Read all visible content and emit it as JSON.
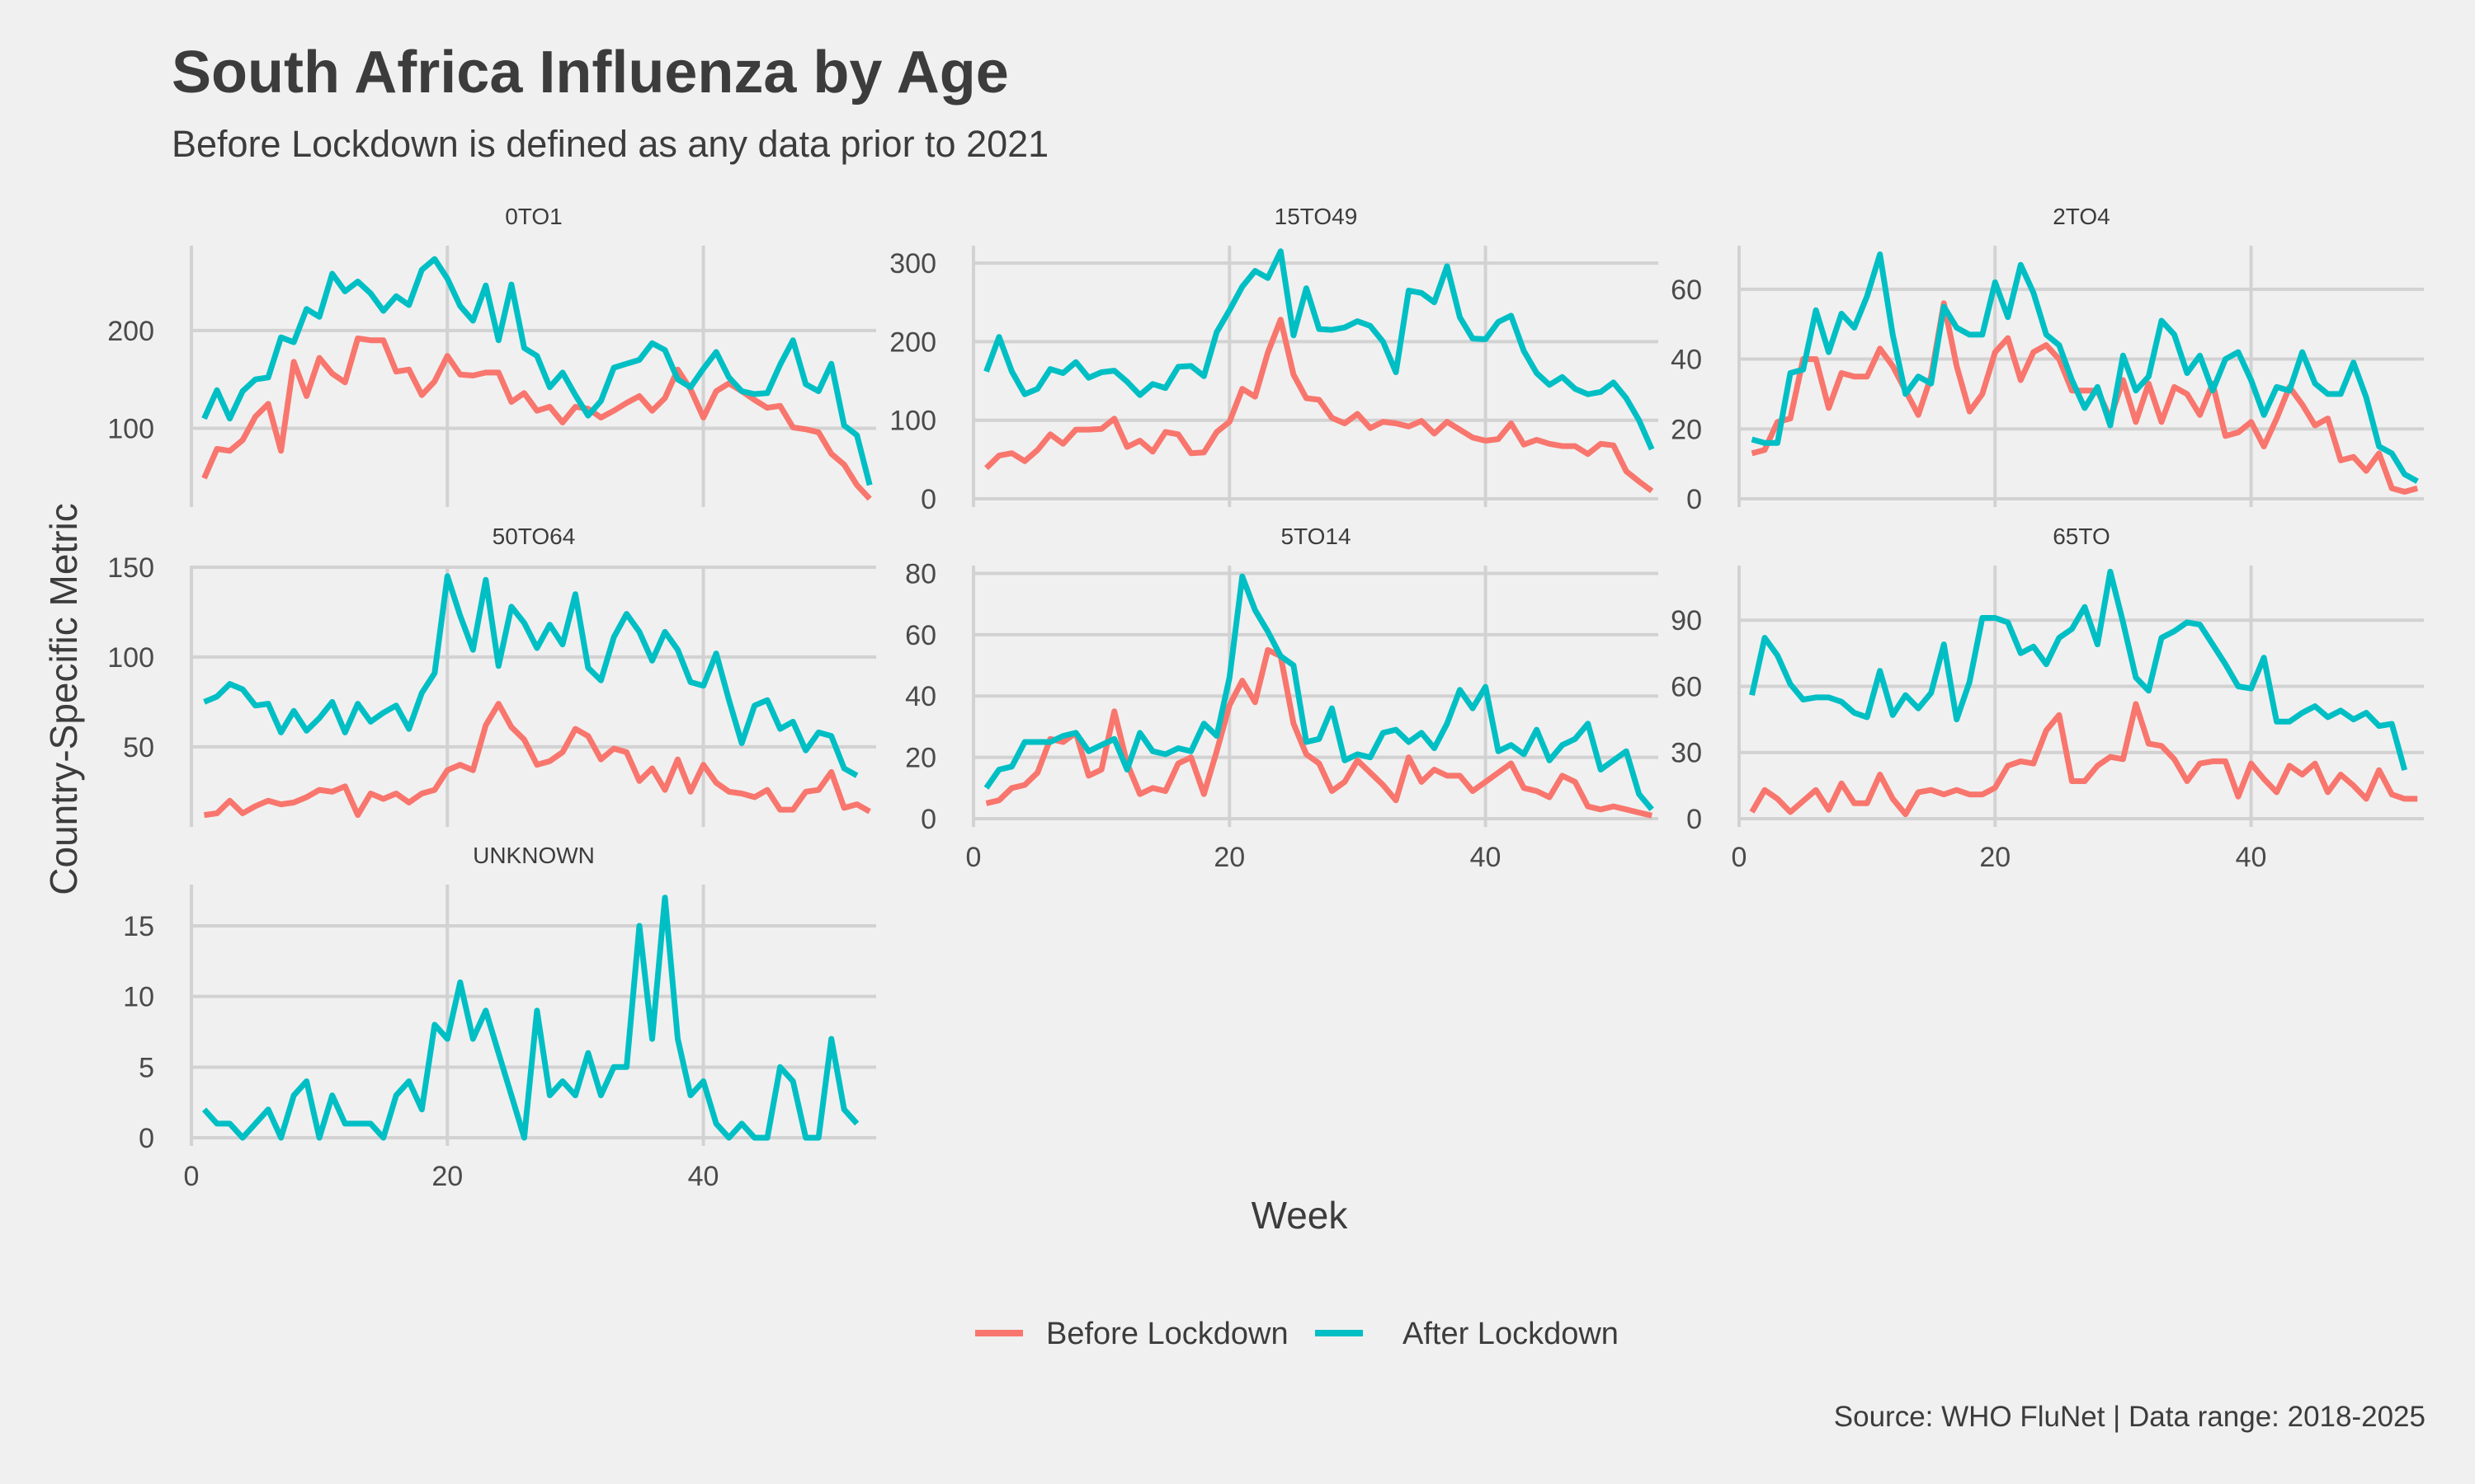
{
  "title": "South Africa Influenza by Age",
  "subtitle": "Before Lockdown is defined as any data prior to 2021",
  "caption": "Source: WHO FluNet | Data range: 2018-2025",
  "colors": {
    "before": "#f8766d",
    "after": "#00bfc4",
    "background": "#f0f0f0",
    "grid": "#d2d2d2"
  },
  "chart_data": {
    "type": "line",
    "xlabel": "Week",
    "ylabel": "Country-Specific Metric",
    "legend_position": "bottom",
    "legend": [
      "Before Lockdown",
      "After Lockdown"
    ],
    "x_ticks": [
      0,
      20,
      40
    ],
    "panels": [
      {
        "name": "0TO1",
        "xlim": [
          0,
          53.5
        ],
        "ylim": [
          28,
          285
        ],
        "y_ticks": [
          100,
          200
        ],
        "series": [
          {
            "name": "Before Lockdown",
            "start_week": 1,
            "values": [
              49,
              79,
              77,
              88,
              112,
              125,
              77,
              168,
              133,
              172,
              156,
              147,
              192,
              190,
              190,
              158,
              160,
              134,
              148,
              174,
              155,
              154,
              157,
              157,
              127,
              136,
              118,
              122,
              106,
              122,
              120,
              111,
              118,
              126,
              133,
              118,
              131,
              160,
              140,
              111,
              138,
              146,
              138,
              129,
              121,
              123,
              101,
              99,
              96,
              74,
              63,
              42,
              28
            ]
          },
          {
            "name": "After Lockdown",
            "start_week": 1,
            "values": [
              110,
              139,
              110,
              138,
              150,
              152,
              193,
              188,
              222,
              214,
              258,
              240,
              250,
              238,
              220,
              235,
              226,
              262,
              273,
              253,
              225,
              210,
              246,
              190,
              247,
              182,
              174,
              142,
              157,
              134,
              113,
              128,
              162,
              166,
              170,
              187,
              180,
              150,
              142,
              161,
              178,
              152,
              138,
              135,
              136,
              165,
              190,
              145,
              138,
              166,
              103,
              93,
              42
            ]
          }
        ]
      },
      {
        "name": "15TO49",
        "xlim": [
          0,
          53.5
        ],
        "ylim": [
          0,
          320
        ],
        "y_ticks": [
          0,
          100,
          200,
          300
        ],
        "series": [
          {
            "name": "Before Lockdown",
            "start_week": 1,
            "values": [
              39,
              55,
              58,
              48,
              62,
              82,
              70,
              88,
              88,
              89,
              102,
              66,
              74,
              60,
              85,
              82,
              58,
              59,
              85,
              98,
              140,
              130,
              186,
              228,
              158,
              128,
              126,
              103,
              96,
              108,
              90,
              98,
              96,
              92,
              99,
              83,
              98,
              88,
              78,
              74,
              76,
              96,
              69,
              75,
              70,
              67,
              67,
              57,
              70,
              68,
              35,
              22,
              10
            ]
          },
          {
            "name": "After Lockdown",
            "start_week": 1,
            "values": [
              162,
              206,
              162,
              133,
              140,
              165,
              160,
              174,
              154,
              161,
              163,
              149,
              132,
              146,
              141,
              168,
              169,
              156,
              212,
              240,
              270,
              290,
              281,
              315,
              208,
              268,
              216,
              215,
              218,
              226,
              220,
              200,
              161,
              265,
              262,
              250,
              296,
              231,
              204,
              203,
              225,
              233,
              188,
              160,
              145,
              155,
              140,
              133,
              136,
              148,
              128,
              100,
              63
            ]
          }
        ]
      },
      {
        "name": "2TO4",
        "xlim": [
          0,
          53.5
        ],
        "ylim": [
          0,
          72
        ],
        "y_ticks": [
          0,
          20,
          40,
          60
        ],
        "series": [
          {
            "name": "Before Lockdown",
            "start_week": 1,
            "values": [
              13,
              14,
              22,
              23,
              40,
              40,
              26,
              36,
              35,
              35,
              43,
              38,
              31,
              24,
              35,
              56,
              38,
              25,
              30,
              42,
              46,
              34,
              42,
              44,
              40,
              31,
              31,
              31,
              23,
              34,
              22,
              33,
              22,
              32,
              30,
              24,
              33,
              18,
              19,
              22,
              15,
              23,
              32,
              27,
              21,
              23,
              11,
              12,
              8,
              13,
              3,
              2,
              3
            ]
          },
          {
            "name": "After Lockdown",
            "start_week": 1,
            "values": [
              17,
              16,
              16,
              36,
              37,
              54,
              42,
              53,
              49,
              58,
              70,
              47,
              30,
              35,
              33,
              55,
              49,
              47,
              47,
              62,
              52,
              67,
              59,
              47,
              44,
              34,
              26,
              32,
              21,
              41,
              31,
              35,
              51,
              47,
              36,
              41,
              31,
              40,
              42,
              34,
              24,
              32,
              31,
              42,
              33,
              30,
              30,
              39,
              29,
              15,
              13,
              7,
              5
            ]
          }
        ]
      },
      {
        "name": "50TO64",
        "xlim": [
          0,
          53.5
        ],
        "ylim": [
          10,
          150
        ],
        "y_ticks": [
          50,
          100,
          150
        ],
        "series": [
          {
            "name": "Before Lockdown",
            "start_week": 1,
            "values": [
              12,
              13,
              20,
              13,
              17,
              20,
              18,
              19,
              22,
              26,
              25,
              28,
              12,
              24,
              21,
              24,
              19,
              24,
              26,
              37,
              40,
              37,
              62,
              74,
              61,
              54,
              40,
              42,
              47,
              60,
              56,
              43,
              49,
              47,
              31,
              38,
              26,
              43,
              25,
              40,
              30,
              25,
              24,
              22,
              26,
              15,
              15,
              25,
              26,
              36,
              16,
              18,
              14
            ]
          },
          {
            "name": "After Lockdown",
            "start_week": 1,
            "values": [
              75,
              78,
              85,
              82,
              73,
              74,
              58,
              70,
              59,
              66,
              75,
              58,
              74,
              64,
              69,
              73,
              60,
              80,
              91,
              145,
              123,
              104,
              143,
              95,
              128,
              119,
              105,
              118,
              107,
              135,
              94,
              87,
              111,
              124,
              114,
              98,
              114,
              104,
              86,
              84,
              102,
              76,
              52,
              73,
              76,
              60,
              64,
              48,
              58,
              56,
              38,
              34
            ]
          }
        ]
      },
      {
        "name": "5TO14",
        "xlim": [
          0,
          53.5
        ],
        "ylim": [
          0,
          82
        ],
        "y_ticks": [
          0,
          20,
          40,
          60,
          80
        ],
        "series": [
          {
            "name": "Before Lockdown",
            "start_week": 1,
            "values": [
              5,
              6,
              10,
              11,
              15,
              26,
              25,
              28,
              14,
              16,
              35,
              18,
              8,
              10,
              9,
              18,
              20,
              8,
              22,
              37,
              45,
              38,
              55,
              53,
              31,
              21,
              18,
              9,
              12,
              19,
              15,
              11,
              6,
              20,
              12,
              16,
              14,
              14,
              9,
              12,
              15,
              18,
              10,
              9,
              7,
              14,
              12,
              4,
              3,
              4,
              3,
              2,
              1
            ]
          },
          {
            "name": "After Lockdown",
            "start_week": 1,
            "values": [
              10,
              16,
              17,
              25,
              25,
              25,
              27,
              28,
              22,
              24,
              26,
              16,
              28,
              22,
              21,
              23,
              22,
              31,
              27,
              46,
              79,
              68,
              61,
              53,
              50,
              25,
              26,
              36,
              19,
              21,
              20,
              28,
              29,
              25,
              28,
              23,
              31,
              42,
              36,
              43,
              22,
              24,
              21,
              29,
              19,
              24,
              26,
              31,
              16,
              19,
              22,
              8,
              3
            ]
          }
        ]
      },
      {
        "name": "65TO",
        "xlim": [
          0,
          53.5
        ],
        "ylim": [
          0,
          114
        ],
        "y_ticks": [
          0,
          30,
          60,
          90
        ],
        "series": [
          {
            "name": "Before Lockdown",
            "start_week": 1,
            "values": [
              3,
              13,
              9,
              3,
              8,
              13,
              4,
              16,
              7,
              7,
              20,
              9,
              2,
              12,
              13,
              11,
              13,
              11,
              11,
              14,
              24,
              26,
              25,
              40,
              47,
              17,
              17,
              24,
              28,
              27,
              52,
              34,
              33,
              27,
              17,
              25,
              26,
              26,
              10,
              25,
              18,
              12,
              24,
              20,
              25,
              12,
              20,
              15,
              9,
              22,
              11,
              9,
              9
            ]
          },
          {
            "name": "After Lockdown",
            "start_week": 1,
            "values": [
              56,
              82,
              74,
              61,
              54,
              55,
              55,
              53,
              48,
              46,
              67,
              47,
              56,
              50,
              57,
              79,
              45,
              62,
              91,
              91,
              89,
              75,
              78,
              70,
              82,
              86,
              96,
              79,
              112,
              89,
              64,
              58,
              82,
              85,
              89,
              88,
              79,
              70,
              60,
              59,
              73,
              44,
              44,
              48,
              51,
              46,
              49,
              45,
              48,
              42,
              43,
              22
            ]
          }
        ]
      },
      {
        "name": "UNKNOWN",
        "xlim": [
          0,
          53.5
        ],
        "ylim": [
          0,
          17.8
        ],
        "y_ticks": [
          0,
          5,
          10,
          15
        ],
        "series": [
          {
            "name": "After Lockdown",
            "start_week": 1,
            "values": [
              2,
              1,
              1,
              0,
              1,
              2,
              0,
              3,
              4,
              0,
              3,
              1,
              1,
              1,
              0,
              3,
              4,
              2,
              8,
              7,
              11,
              7,
              9,
              6,
              3,
              0,
              9,
              3,
              4,
              3,
              6,
              3,
              5,
              5,
              15,
              7,
              17,
              7,
              3,
              4,
              1,
              0,
              1,
              0,
              0,
              5,
              4,
              0,
              0,
              7,
              2,
              1
            ]
          }
        ]
      }
    ]
  }
}
